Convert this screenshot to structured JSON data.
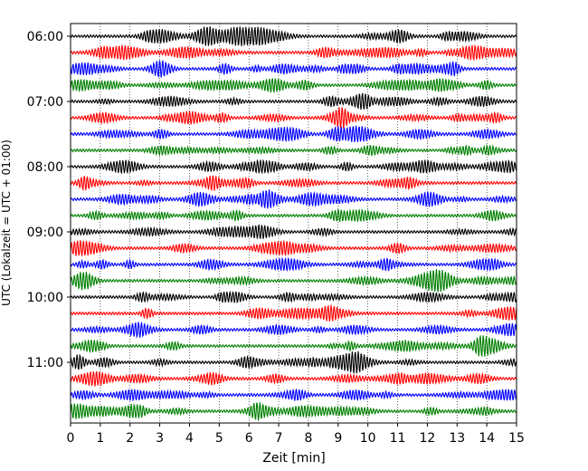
{
  "chart_data": {
    "type": "line",
    "subtype": "helicorder",
    "xlabel": "Zeit  [min]",
    "ylabel": "UTC (Lokalzeit = UTC + 01:00)",
    "xlim": [
      0,
      15
    ],
    "x_ticks": [
      "0",
      "1",
      "2",
      "3",
      "4",
      "5",
      "6",
      "7",
      "8",
      "9",
      "10",
      "11",
      "12",
      "13",
      "14",
      "15"
    ],
    "y_tick_labels": [
      "06:00",
      "07:00",
      "08:00",
      "09:00",
      "10:00",
      "11:00"
    ],
    "y_tick_rows": [
      0,
      4,
      8,
      12,
      16,
      20
    ],
    "row_start_times": [
      "06:00",
      "06:15",
      "06:30",
      "06:45",
      "07:00",
      "07:15",
      "07:30",
      "07:45",
      "08:00",
      "08:15",
      "08:30",
      "08:45",
      "09:00",
      "09:15",
      "09:30",
      "09:45",
      "10:00",
      "10:15",
      "10:30",
      "10:45",
      "11:00",
      "11:15",
      "11:30",
      "11:45"
    ],
    "row_colors": [
      "#000000",
      "#ff0000",
      "#0000ff",
      "#008000"
    ],
    "grid": "vertical dotted lines at each minute",
    "minutes_per_row": 15
  }
}
